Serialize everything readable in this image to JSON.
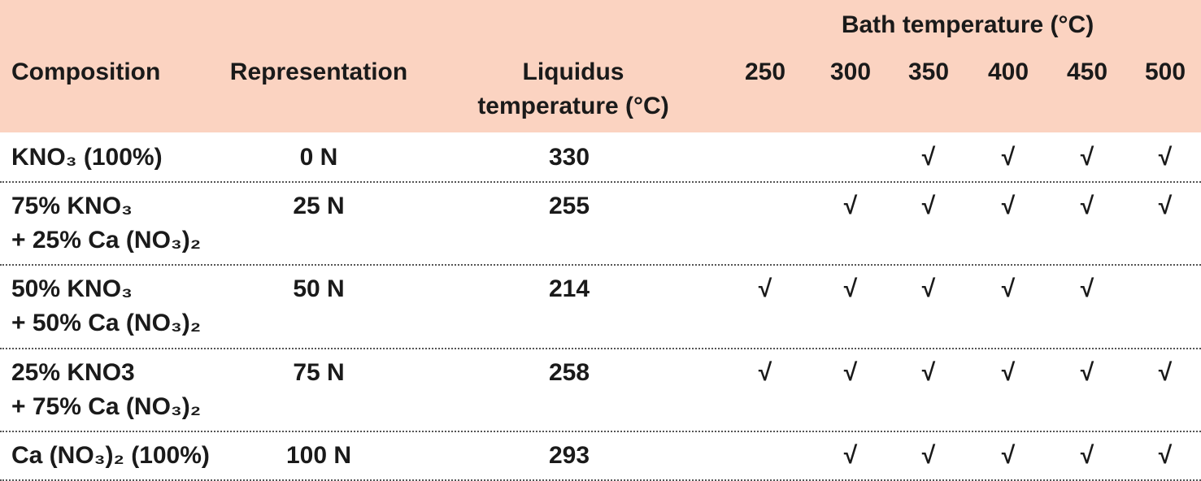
{
  "table": {
    "headers": {
      "composition": "Composition",
      "representation": "Representation",
      "liquidus": "Liquidus temperature (°C)",
      "bath": "Bath temperature (°C)",
      "bath_columns": [
        "250",
        "300",
        "350",
        "400",
        "450",
        "500"
      ]
    },
    "rows": [
      {
        "composition": "KNO₃ (100%)",
        "representation": "0 N",
        "liquidus": 330,
        "bath": [
          null,
          null,
          "√",
          "√",
          "√",
          "√"
        ]
      },
      {
        "composition": "75% KNO₃\n+ 25% Ca (NO₃)₂",
        "representation": "25 N",
        "liquidus": 255,
        "bath": [
          null,
          "√",
          "√",
          "√",
          "√",
          "√"
        ]
      },
      {
        "composition": "50% KNO₃\n+ 50% Ca (NO₃)₂",
        "representation": "50 N",
        "liquidus": 214,
        "bath": [
          "√",
          "√",
          "√",
          "√",
          "√",
          null
        ]
      },
      {
        "composition": "25% KNO3\n+ 75% Ca (NO₃)₂",
        "representation": "75 N",
        "liquidus": 258,
        "bath": [
          "√",
          "√",
          "√",
          "√",
          "√",
          "√"
        ]
      },
      {
        "composition": "Ca (NO₃)₂ (100%)",
        "representation": "100 N",
        "liquidus": 293,
        "bath": [
          null,
          "√",
          "√",
          "√",
          "√",
          "√"
        ]
      }
    ]
  }
}
